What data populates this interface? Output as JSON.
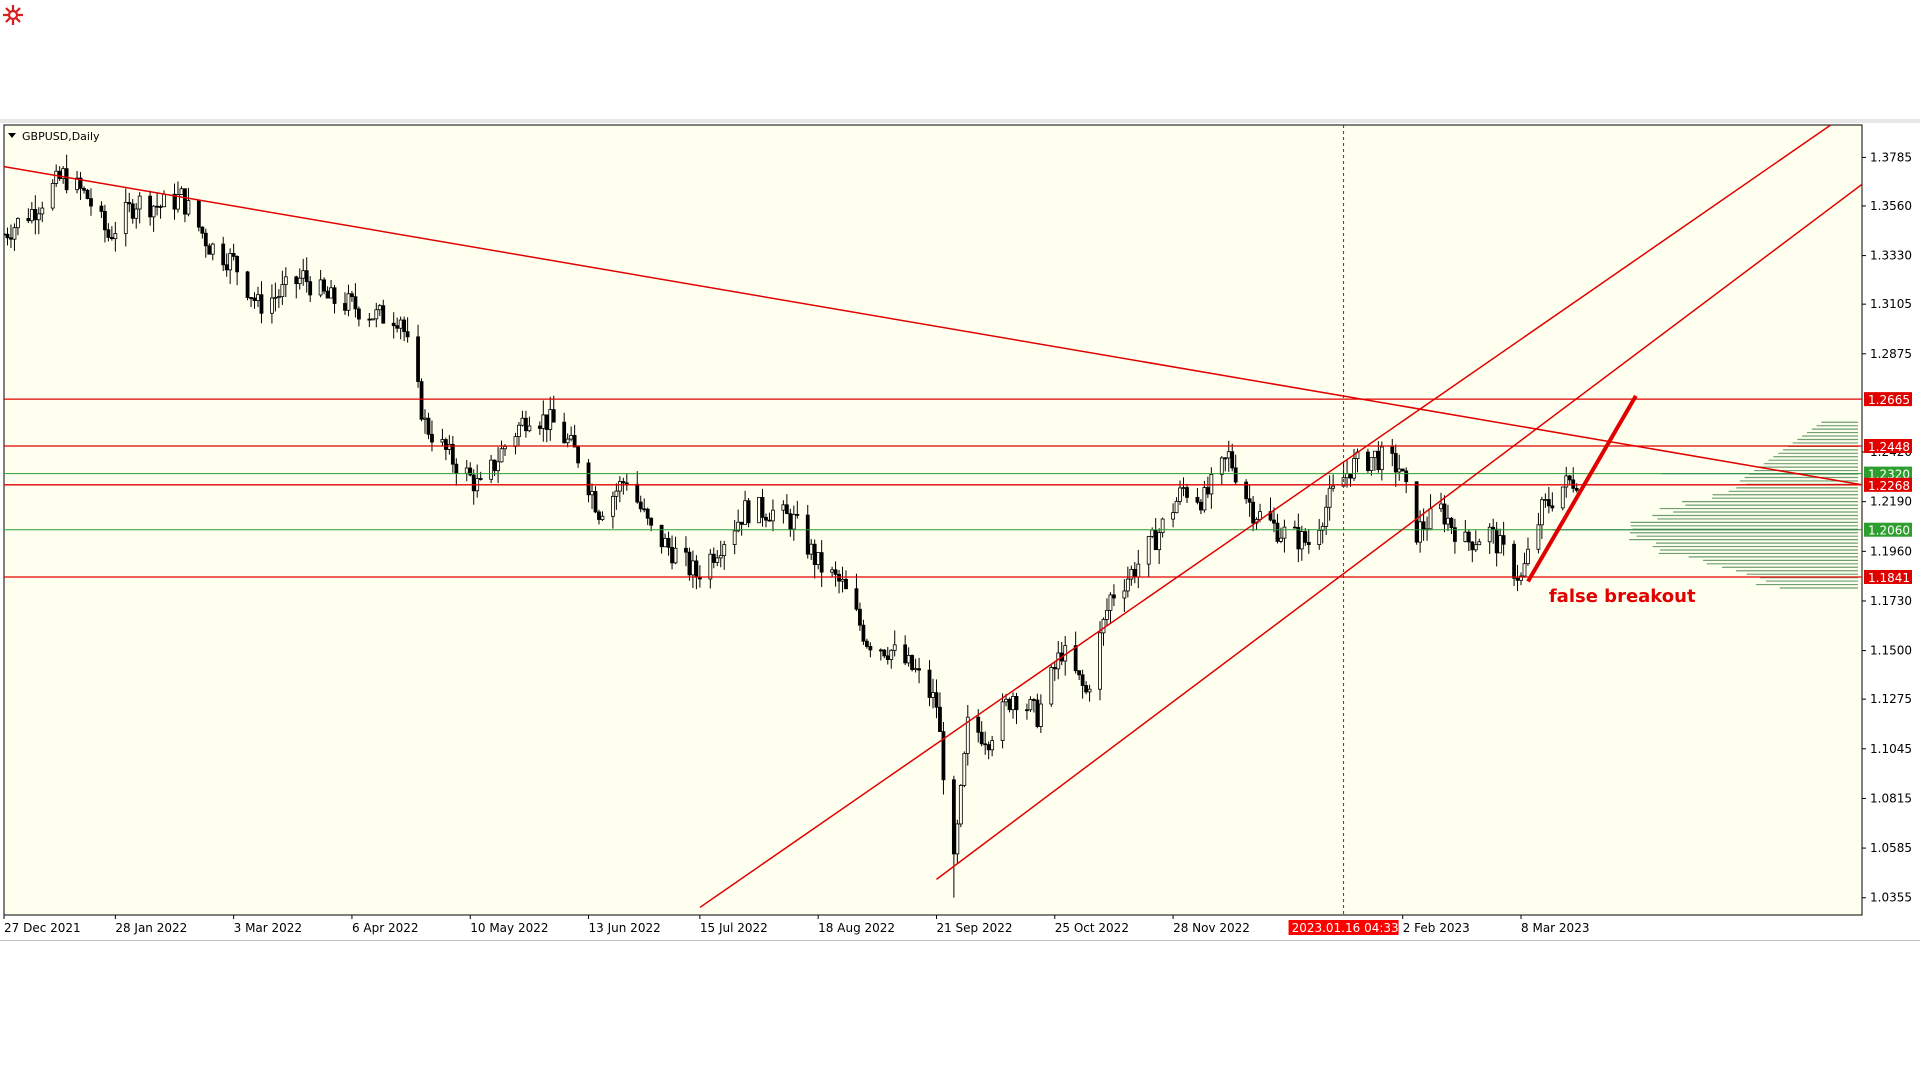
{
  "colors": {
    "background": "#fffff0",
    "candle": "#000000",
    "red": "#e00000",
    "green": "#2e9e2e",
    "volume": "#6f9f6f",
    "volume_blue": "#3333cc",
    "crosshair": "#d40000"
  },
  "icons": {
    "logo": "logo-icon",
    "dropdown": "dropdown-triangle-icon"
  },
  "chart_data": {
    "type": "candlestick",
    "symbol": "GBPUSD,Daily",
    "x_range": [
      "2021-12-27",
      "2023-06-14"
    ],
    "ylim": [
      1.0275,
      1.3935
    ],
    "y_ticks": [
      "1.3785",
      "1.3560",
      "1.3330",
      "1.3105",
      "1.2875",
      "1.2420",
      "1.2190",
      "1.1960",
      "1.1730",
      "1.1500",
      "1.1275",
      "1.1045",
      "1.0815",
      "1.0585",
      "1.0355"
    ],
    "x_ticks": [
      {
        "date": "2021-12-27",
        "label": "27 Dec 2021"
      },
      {
        "date": "2022-01-28",
        "label": "28 Jan 2022"
      },
      {
        "date": "2022-03-03",
        "label": "3 Mar 2022"
      },
      {
        "date": "2022-04-06",
        "label": "6 Apr 2022"
      },
      {
        "date": "2022-05-10",
        "label": "10 May 2022"
      },
      {
        "date": "2022-06-13",
        "label": "13 Jun 2022"
      },
      {
        "date": "2022-07-15",
        "label": "15 Jul 2022"
      },
      {
        "date": "2022-08-18",
        "label": "18 Aug 2022"
      },
      {
        "date": "2022-09-21",
        "label": "21 Sep 2022"
      },
      {
        "date": "2022-10-25",
        "label": "25 Oct 2022"
      },
      {
        "date": "2022-11-28",
        "label": "28 Nov 2022"
      },
      {
        "date": "2023-02-02",
        "label": "2 Feb 2023"
      },
      {
        "date": "2023-03-08",
        "label": "8 Mar 2023"
      }
    ],
    "crosshair": {
      "date": "2023-01-16",
      "label": "2023.01.16 04:33"
    },
    "levels": [
      {
        "value": 1.2665,
        "label": "1.2665",
        "color": "red"
      },
      {
        "value": 1.2448,
        "label": "1.2448",
        "color": "red"
      },
      {
        "value": 1.232,
        "label": "1.2320",
        "color": "green"
      },
      {
        "value": 1.2268,
        "label": "1.2268",
        "color": "red"
      },
      {
        "value": 1.206,
        "label": "1.2060",
        "color": "green"
      },
      {
        "value": 1.1841,
        "label": "1.1841",
        "color": "red"
      }
    ],
    "trendlines": [
      {
        "name": "descending-trendline",
        "from": {
          "date": "2021-12-27",
          "price": 1.3742
        },
        "to": {
          "date": "2023-06-14",
          "price": 1.2268
        }
      },
      {
        "name": "channel-upper-line",
        "from": {
          "date": "2022-07-15",
          "price": 1.031
        },
        "to": {
          "date": "2023-06-05",
          "price": 1.3935
        }
      },
      {
        "name": "channel-lower-line",
        "from": {
          "date": "2022-09-21",
          "price": 1.044
        },
        "to": {
          "date": "2023-06-14",
          "price": 1.366
        }
      },
      {
        "name": "false-breakout-arrow-line",
        "from": {
          "date": "2023-03-10",
          "price": 1.182
        },
        "to": {
          "date": "2023-04-10",
          "price": 1.268
        }
      }
    ],
    "annotations": [
      {
        "text": "false breakout",
        "date": "2023-03-16",
        "price": 1.1725
      }
    ],
    "price_path": [
      [
        "2021-12-27",
        1.343
      ],
      [
        "2022-01-05",
        1.355
      ],
      [
        "2022-01-13",
        1.37
      ],
      [
        "2022-01-20",
        1.36
      ],
      [
        "2022-01-26",
        1.342
      ],
      [
        "2022-02-03",
        1.358
      ],
      [
        "2022-02-10",
        1.356
      ],
      [
        "2022-02-16",
        1.36
      ],
      [
        "2022-02-24",
        1.338
      ],
      [
        "2022-03-03",
        1.33
      ],
      [
        "2022-03-10",
        1.31
      ],
      [
        "2022-03-16",
        1.315
      ],
      [
        "2022-03-23",
        1.323
      ],
      [
        "2022-03-30",
        1.313
      ],
      [
        "2022-04-06",
        1.31
      ],
      [
        "2022-04-13",
        1.305
      ],
      [
        "2022-04-20",
        1.305
      ],
      [
        "2022-04-27",
        1.255
      ],
      [
        "2022-05-04",
        1.24
      ],
      [
        "2022-05-13",
        1.225
      ],
      [
        "2022-05-20",
        1.245
      ],
      [
        "2022-05-27",
        1.26
      ],
      [
        "2022-06-03",
        1.255
      ],
      [
        "2022-06-10",
        1.24
      ],
      [
        "2022-06-16",
        1.215
      ],
      [
        "2022-06-24",
        1.23
      ],
      [
        "2022-07-01",
        1.205
      ],
      [
        "2022-07-08",
        1.195
      ],
      [
        "2022-07-14",
        1.185
      ],
      [
        "2022-07-21",
        1.2
      ],
      [
        "2022-07-28",
        1.215
      ],
      [
        "2022-08-04",
        1.215
      ],
      [
        "2022-08-11",
        1.21
      ],
      [
        "2022-08-18",
        1.19
      ],
      [
        "2022-08-25",
        1.18
      ],
      [
        "2022-09-01",
        1.155
      ],
      [
        "2022-09-08",
        1.15
      ],
      [
        "2022-09-15",
        1.14
      ],
      [
        "2022-09-21",
        1.125
      ],
      [
        "2022-09-26",
        1.05
      ],
      [
        "2022-09-30",
        1.115
      ],
      [
        "2022-10-06",
        1.11
      ],
      [
        "2022-10-13",
        1.13
      ],
      [
        "2022-10-20",
        1.12
      ],
      [
        "2022-10-27",
        1.15
      ],
      [
        "2022-11-03",
        1.13
      ],
      [
        "2022-11-10",
        1.175
      ],
      [
        "2022-11-17",
        1.188
      ],
      [
        "2022-11-24",
        1.205
      ],
      [
        "2022-12-01",
        1.225
      ],
      [
        "2022-12-07",
        1.22
      ],
      [
        "2022-12-14",
        1.24
      ],
      [
        "2022-12-21",
        1.215
      ],
      [
        "2022-12-29",
        1.205
      ],
      [
        "2023-01-06",
        1.2
      ],
      [
        "2023-01-12",
        1.22
      ],
      [
        "2023-01-18",
        1.235
      ],
      [
        "2023-01-25",
        1.24
      ],
      [
        "2023-02-01",
        1.235
      ],
      [
        "2023-02-06",
        1.205
      ],
      [
        "2023-02-13",
        1.215
      ],
      [
        "2023-02-20",
        1.2
      ],
      [
        "2023-02-27",
        1.205
      ],
      [
        "2023-03-03",
        1.195
      ],
      [
        "2023-03-08",
        1.183
      ],
      [
        "2023-03-14",
        1.215
      ],
      [
        "2023-03-20",
        1.226
      ],
      [
        "2023-03-24",
        1.23
      ]
    ],
    "key_wicks": [
      {
        "date": "2022-09-26",
        "low": 1.0355
      },
      {
        "date": "2023-03-08",
        "low": 1.1803
      },
      {
        "date": "2022-01-13",
        "high": 1.3745
      }
    ]
  }
}
